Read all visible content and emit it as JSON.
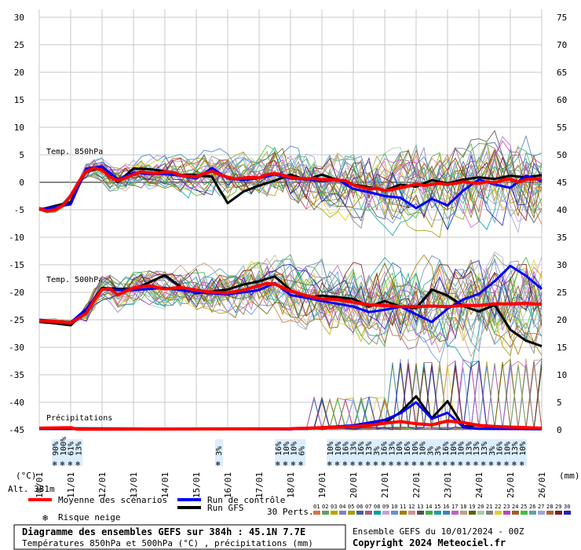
{
  "chart_data": {
    "type": "line",
    "title": "Diagramme des ensembles GEFS sur 384h : 45.1N 7.7E",
    "subtitle": "Températures 850hPa et 500hPa (°C) , précipitations (mm)",
    "left_axis": {
      "unit": "(°C)",
      "min": -45,
      "max": 30,
      "ticks": [
        30,
        25,
        20,
        15,
        10,
        5,
        0,
        -5,
        -10,
        -15,
        -20,
        -25,
        -30,
        -35,
        -40,
        -45
      ]
    },
    "right_axis": {
      "unit": "(mm)",
      "min": 0,
      "max": 75,
      "ticks": [
        75,
        70,
        65,
        60,
        55,
        50,
        45,
        40,
        35,
        30,
        25,
        20,
        15,
        10,
        5,
        0
      ]
    },
    "x_axis": {
      "ticks": [
        "10/01",
        "11/01",
        "12/01",
        "13/01",
        "14/01",
        "15/01",
        "16/01",
        "17/01",
        "18/01",
        "19/01",
        "20/01",
        "21/01",
        "22/01",
        "23/01",
        "24/01",
        "25/01",
        "26/01"
      ]
    },
    "panel_labels": {
      "t850": "Temp. 850hPa",
      "t500": "Temp. 500hPa",
      "precip": "Précipitations"
    },
    "altitude": "Alt. 381m",
    "series": [
      {
        "name": "Moyenne des scénarios",
        "color": "#ff0000",
        "t850": [
          [
            0,
            -4.8
          ],
          [
            0.25,
            -5.2
          ],
          [
            0.5,
            -5.0
          ],
          [
            0.75,
            -4.2
          ],
          [
            1,
            -2.5
          ],
          [
            1.25,
            0
          ],
          [
            1.5,
            2.0
          ],
          [
            1.75,
            2.6
          ],
          [
            2,
            2.2
          ],
          [
            2.25,
            1.0
          ],
          [
            2.5,
            0.3
          ],
          [
            2.75,
            0.8
          ],
          [
            3,
            1.4
          ],
          [
            3.25,
            1.9
          ],
          [
            3.5,
            1.7
          ],
          [
            3.75,
            1.6
          ],
          [
            4,
            1.9
          ],
          [
            4.25,
            1.8
          ],
          [
            4.5,
            1.3
          ],
          [
            4.75,
            1.1
          ],
          [
            5,
            1.0
          ],
          [
            5.25,
            1.6
          ],
          [
            5.5,
            2.0
          ],
          [
            5.75,
            1.4
          ],
          [
            6,
            0.9
          ],
          [
            6.25,
            0.6
          ],
          [
            6.5,
            0.8
          ],
          [
            6.75,
            0.9
          ],
          [
            7,
            0.8
          ],
          [
            7.25,
            1.4
          ],
          [
            7.5,
            1.6
          ],
          [
            7.75,
            1.3
          ],
          [
            8,
            0.9
          ],
          [
            8.25,
            0.7
          ],
          [
            8.5,
            0.6
          ],
          [
            8.75,
            0.7
          ],
          [
            9,
            0.5
          ],
          [
            9.25,
            0.5
          ],
          [
            9.5,
            0.4
          ],
          [
            9.75,
            0.3
          ],
          [
            10,
            -0.5
          ],
          [
            10.25,
            -0.9
          ],
          [
            10.5,
            -1.2
          ],
          [
            10.75,
            -1.1
          ],
          [
            11,
            -1.5
          ],
          [
            11.25,
            -1.3
          ],
          [
            11.5,
            -1.0
          ],
          [
            11.75,
            -0.7
          ],
          [
            12,
            -0.3
          ],
          [
            12.25,
            -0.6
          ],
          [
            12.5,
            -0.4
          ],
          [
            12.75,
            -0.2
          ],
          [
            13,
            -0.4
          ],
          [
            13.25,
            -0.2
          ],
          [
            13.5,
            0.1
          ],
          [
            13.75,
            -0.1
          ],
          [
            14,
            -0.2
          ],
          [
            14.25,
            0.1
          ],
          [
            14.5,
            -0.1
          ],
          [
            14.75,
            0.4
          ],
          [
            15,
            0.6
          ],
          [
            15.25,
            0.0
          ],
          [
            15.5,
            0.5
          ],
          [
            15.75,
            0.6
          ],
          [
            16,
            0.7
          ]
        ],
        "t500": [
          [
            0,
            -25.2
          ],
          [
            0.5,
            -25.3
          ],
          [
            1,
            -25.6
          ],
          [
            1.5,
            -23.8
          ],
          [
            1.75,
            -21.5
          ],
          [
            2,
            -19.5
          ],
          [
            2.25,
            -19.3
          ],
          [
            2.5,
            -20.5
          ],
          [
            2.75,
            -19.8
          ],
          [
            3,
            -19.2
          ],
          [
            3.25,
            -19.0
          ],
          [
            3.5,
            -18.8
          ],
          [
            4,
            -19.4
          ],
          [
            4.5,
            -19.1
          ],
          [
            5,
            -19.6
          ],
          [
            5.5,
            -20.0
          ],
          [
            6,
            -20.1
          ],
          [
            6.5,
            -19.6
          ],
          [
            7,
            -18.8
          ],
          [
            7.25,
            -18.4
          ],
          [
            7.5,
            -18.5
          ],
          [
            8,
            -19.8
          ],
          [
            8.5,
            -20.6
          ],
          [
            9,
            -21.2
          ],
          [
            9.5,
            -21.3
          ],
          [
            10,
            -21.8
          ],
          [
            10.5,
            -22.3
          ],
          [
            11,
            -22.4
          ],
          [
            11.5,
            -22.6
          ],
          [
            12,
            -22.6
          ],
          [
            12.5,
            -22.5
          ],
          [
            13,
            -22.6
          ],
          [
            13.5,
            -22.4
          ],
          [
            14,
            -22.4
          ],
          [
            14.5,
            -22.1
          ],
          [
            15,
            -22.1
          ],
          [
            15.5,
            -22.0
          ],
          [
            16,
            -22.2
          ]
        ],
        "precip": [
          [
            0,
            0.3
          ],
          [
            1,
            0.4
          ],
          [
            1.2,
            0.1
          ],
          [
            8,
            0.2
          ],
          [
            9,
            0.4
          ],
          [
            10,
            0.6
          ],
          [
            10.5,
            0.8
          ],
          [
            11,
            1.2
          ],
          [
            11.5,
            1.5
          ],
          [
            12,
            1.1
          ],
          [
            12.5,
            0.9
          ],
          [
            13,
            1.6
          ],
          [
            13.5,
            1.3
          ],
          [
            14,
            0.8
          ],
          [
            14.5,
            0.6
          ],
          [
            15,
            0.5
          ],
          [
            15.5,
            0.4
          ],
          [
            16,
            0.3
          ]
        ]
      },
      {
        "name": "Run de contrôle",
        "color": "#0000ff",
        "t850": [
          [
            0,
            -5
          ],
          [
            1,
            -4
          ],
          [
            1.5,
            2.5
          ],
          [
            2,
            2.9
          ],
          [
            2.5,
            0.5
          ],
          [
            3,
            1.7
          ],
          [
            3.5,
            1.5
          ],
          [
            4,
            1.5
          ],
          [
            4.5,
            1.2
          ],
          [
            5,
            0.7
          ],
          [
            5.5,
            2.6
          ],
          [
            6,
            0.7
          ],
          [
            6.5,
            0.4
          ],
          [
            7,
            0.8
          ],
          [
            7.5,
            1.4
          ],
          [
            8,
            0.7
          ],
          [
            8.5,
            0.5
          ],
          [
            9,
            0.2
          ],
          [
            9.5,
            0.5
          ],
          [
            10,
            -1.2
          ],
          [
            10.5,
            -1.8
          ],
          [
            11,
            -2.5
          ],
          [
            11.5,
            -2.8
          ],
          [
            12,
            -4.7
          ],
          [
            12.5,
            -3.0
          ],
          [
            13,
            -4.2
          ],
          [
            13.5,
            -1.5
          ],
          [
            14,
            0.5
          ],
          [
            14.5,
            -0.4
          ],
          [
            15,
            -1.0
          ],
          [
            15.5,
            1.2
          ],
          [
            16,
            0.2
          ]
        ],
        "t500": [
          [
            0,
            -25
          ],
          [
            1,
            -25.5
          ],
          [
            1.5,
            -23
          ],
          [
            2,
            -19.5
          ],
          [
            3,
            -19.6
          ],
          [
            4,
            -19.2
          ],
          [
            5,
            -20.0
          ],
          [
            6,
            -20.4
          ],
          [
            7,
            -19.6
          ],
          [
            7.5,
            -18.3
          ],
          [
            8,
            -20.5
          ],
          [
            8.5,
            -21.0
          ],
          [
            9,
            -21.6
          ],
          [
            10,
            -22.6
          ],
          [
            10.5,
            -23.6
          ],
          [
            11,
            -23.2
          ],
          [
            11.5,
            -22.6
          ],
          [
            12,
            -24.0
          ],
          [
            12.5,
            -25.4
          ],
          [
            13,
            -23.0
          ],
          [
            13.5,
            -21.3
          ],
          [
            14,
            -20.3
          ],
          [
            14.5,
            -18.0
          ],
          [
            15,
            -15.2
          ],
          [
            15.5,
            -17.0
          ],
          [
            16,
            -19.4
          ]
        ],
        "precip": [
          [
            0,
            0.3
          ],
          [
            8,
            0.1
          ],
          [
            10,
            0.8
          ],
          [
            11,
            1.8
          ],
          [
            11.5,
            3.0
          ],
          [
            12,
            5.0
          ],
          [
            12.5,
            2.0
          ],
          [
            13,
            3.1
          ],
          [
            13.5,
            0.5
          ],
          [
            14,
            0.2
          ],
          [
            16,
            0.1
          ]
        ]
      },
      {
        "name": "Run GFS",
        "color": "#000000",
        "t850": [
          [
            0,
            -5
          ],
          [
            1,
            -3.6
          ],
          [
            1.5,
            2.2
          ],
          [
            2,
            2.5
          ],
          [
            2.5,
            0
          ],
          [
            3,
            2.5
          ],
          [
            3.5,
            2.4
          ],
          [
            4,
            2.0
          ],
          [
            4.5,
            1.4
          ],
          [
            5,
            1.3
          ],
          [
            5.5,
            1.0
          ],
          [
            6,
            -3.8
          ],
          [
            6.5,
            -1.7
          ],
          [
            7,
            -0.6
          ],
          [
            7.5,
            0.3
          ],
          [
            8,
            1.4
          ],
          [
            8.5,
            0.4
          ],
          [
            9,
            1.4
          ],
          [
            9.5,
            0.4
          ],
          [
            10,
            -0.4
          ],
          [
            10.5,
            -0.9
          ],
          [
            11,
            -1.5
          ],
          [
            11.5,
            -0.4
          ],
          [
            12,
            -0.8
          ],
          [
            12.5,
            0.4
          ],
          [
            13,
            -0.2
          ],
          [
            13.5,
            0.5
          ],
          [
            14,
            0.9
          ],
          [
            14.5,
            0.6
          ],
          [
            15,
            1.2
          ],
          [
            15.5,
            0.9
          ],
          [
            16,
            1.3
          ]
        ],
        "t500": [
          [
            0,
            -25.3
          ],
          [
            1,
            -26
          ],
          [
            1.5,
            -23.2
          ],
          [
            2,
            -19.2
          ],
          [
            3,
            -19.5
          ],
          [
            4,
            -16.9
          ],
          [
            4.5,
            -19.0
          ],
          [
            5,
            -20.2
          ],
          [
            6,
            -19.5
          ],
          [
            6.5,
            -18.6
          ],
          [
            7,
            -18.0
          ],
          [
            7.5,
            -17.1
          ],
          [
            8,
            -19.6
          ],
          [
            8.5,
            -21.0
          ],
          [
            9,
            -20.6
          ],
          [
            10,
            -21.2
          ],
          [
            10.5,
            -22.6
          ],
          [
            11,
            -21.6
          ],
          [
            11.5,
            -22.6
          ],
          [
            12,
            -22.9
          ],
          [
            12.5,
            -19.5
          ],
          [
            13,
            -20.6
          ],
          [
            13.5,
            -22.5
          ],
          [
            14,
            -23.5
          ],
          [
            14.5,
            -22.3
          ],
          [
            15,
            -26.8
          ],
          [
            15.5,
            -28.8
          ],
          [
            16,
            -29.8
          ]
        ],
        "precip": [
          [
            0,
            0.2
          ],
          [
            8,
            0.1
          ],
          [
            10,
            0.7
          ],
          [
            11,
            1.3
          ],
          [
            11.5,
            3.2
          ],
          [
            12,
            6.1
          ],
          [
            12.5,
            2.1
          ],
          [
            13,
            5.2
          ],
          [
            13.5,
            0.6
          ],
          [
            14,
            0.9
          ],
          [
            14.5,
            0.3
          ],
          [
            16,
            0.2
          ]
        ]
      }
    ],
    "snow_risk": [
      {
        "day": 0.5,
        "pct": [
          "90%",
          "100%",
          "61%",
          "13%"
        ]
      },
      {
        "day": 5.7,
        "pct": [
          "3%"
        ]
      },
      {
        "day": 7.6,
        "pct": [
          "16%",
          "10%",
          "10%",
          "6%"
        ]
      },
      {
        "day": 9.25,
        "pct": [
          "10%",
          "10%",
          "16%",
          "13%",
          "16%",
          "13%",
          "3%",
          "16%",
          "13%",
          "10%",
          "16%",
          "10%",
          "10%",
          "3%",
          "3%",
          "16%",
          "10%",
          "10%",
          "13%",
          "13%",
          "13%",
          "3%",
          "16%",
          "10%",
          "13%",
          "10%"
        ]
      }
    ],
    "legend": {
      "mean": "Moyenne des scénarios",
      "control": "Run de contrôle",
      "gfs": "Run GFS",
      "snow": "Risque neige",
      "perts": "30 Perts."
    },
    "pert_labels": [
      "01",
      "02",
      "03",
      "04",
      "05",
      "06",
      "07",
      "08",
      "09",
      "10",
      "11",
      "12",
      "13",
      "14",
      "15",
      "16",
      "17",
      "18",
      "19",
      "20",
      "21",
      "22",
      "23",
      "24",
      "25",
      "26",
      "27",
      "28",
      "29",
      "30"
    ],
    "pert_colors": [
      "#d87040",
      "#60a060",
      "#c0a000",
      "#8080c0",
      "#a0a000",
      "#4060a0",
      "#a06080",
      "#00a0a0",
      "#c8a0d0",
      "#6090e0",
      "#a08000",
      "#d09090",
      "#505050",
      "#40b040",
      "#20a0a0",
      "#4080c0",
      "#c060c0",
      "#c0a080",
      "#606000",
      "#a0d0a0",
      "#808080",
      "#e0d020",
      "#c040c0",
      "#a06020",
      "#40c040",
      "#60a0a0",
      "#a0a0e0",
      "#b06030",
      "#802020",
      "#2020c0"
    ],
    "footer": {
      "ensemble": "Ensemble GEFS du 10/01/2024 - 00Z",
      "copyright": "Copyright 2024 Meteociel.fr"
    }
  }
}
